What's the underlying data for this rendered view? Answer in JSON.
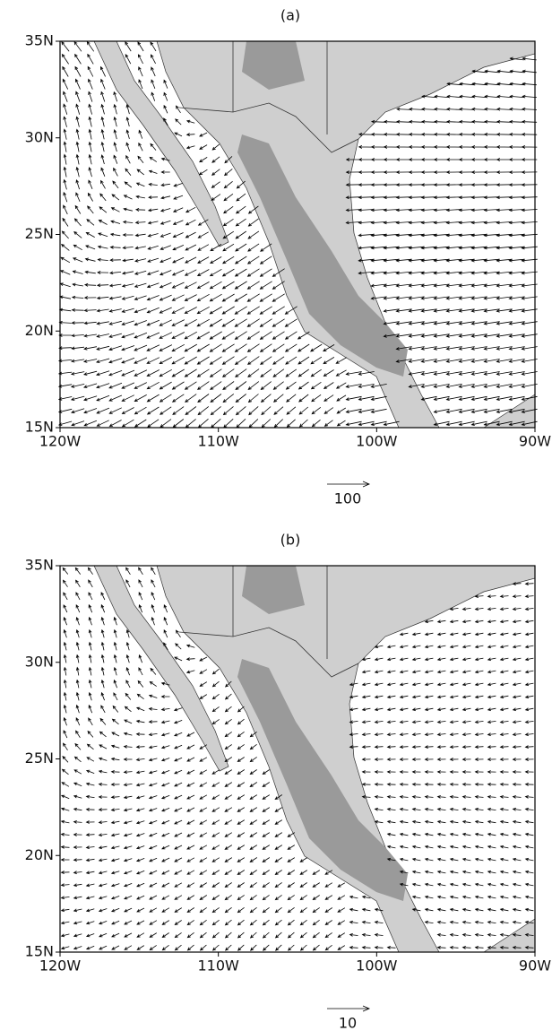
{
  "panels": [
    {
      "title": "(a)",
      "yticks": [
        {
          "value": 35,
          "label": "35N"
        },
        {
          "value": 30,
          "label": "30N"
        },
        {
          "value": 25,
          "label": "25N"
        },
        {
          "value": 20,
          "label": "20N"
        },
        {
          "value": 15,
          "label": "15N"
        }
      ],
      "xticks": [
        {
          "value": -120,
          "label": "120W"
        },
        {
          "value": -110,
          "label": "110W"
        },
        {
          "value": -100,
          "label": "100W"
        },
        {
          "value": -90,
          "label": "90W"
        }
      ],
      "reference_vector": 100
    },
    {
      "title": "(b)",
      "yticks": [
        {
          "value": 35,
          "label": "35N"
        },
        {
          "value": 30,
          "label": "30N"
        },
        {
          "value": 25,
          "label": "25N"
        },
        {
          "value": 20,
          "label": "20N"
        },
        {
          "value": 15,
          "label": "15N"
        }
      ],
      "xticks": [
        {
          "value": -120,
          "label": "120W"
        },
        {
          "value": -110,
          "label": "110W"
        },
        {
          "value": -100,
          "label": "100W"
        },
        {
          "value": -90,
          "label": "90W"
        }
      ],
      "reference_vector": 10
    }
  ]
}
